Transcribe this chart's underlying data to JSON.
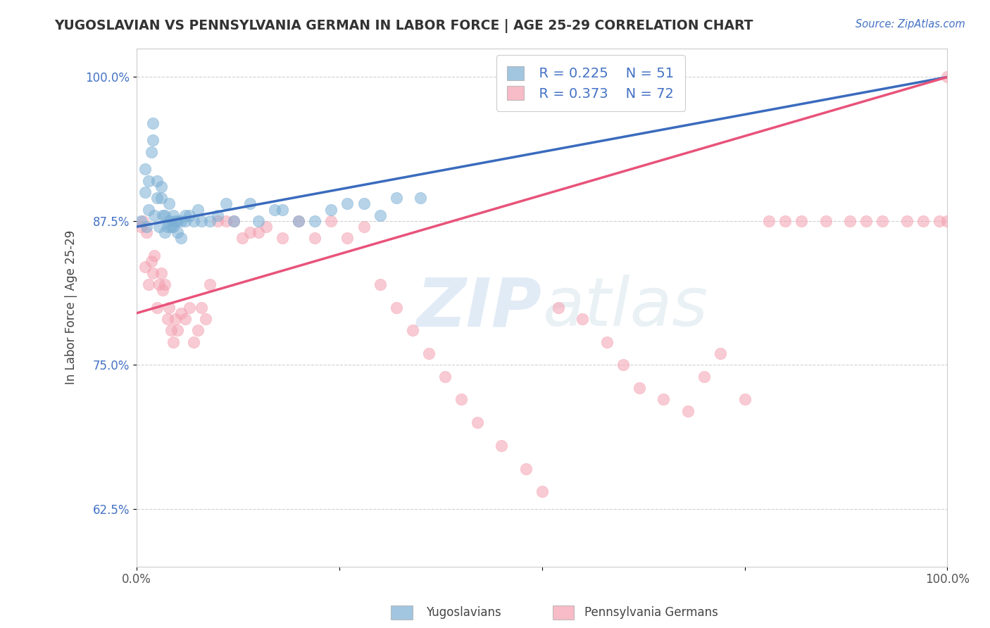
{
  "title": "YUGOSLAVIAN VS PENNSYLVANIA GERMAN IN LABOR FORCE | AGE 25-29 CORRELATION CHART",
  "source_text": "Source: ZipAtlas.com",
  "xlabel": "",
  "ylabel": "In Labor Force | Age 25-29",
  "xlim": [
    0.0,
    1.0
  ],
  "ylim": [
    0.575,
    1.025
  ],
  "xticks": [
    0.0,
    0.25,
    0.5,
    0.75,
    1.0
  ],
  "xticklabels": [
    "0.0%",
    "",
    "",
    "",
    "100.0%"
  ],
  "yticks": [
    0.625,
    0.75,
    0.875,
    1.0
  ],
  "yticklabels": [
    "62.5%",
    "75.0%",
    "87.5%",
    "100.0%"
  ],
  "background_color": "#ffffff",
  "watermark_zip": "ZIP",
  "watermark_atlas": "atlas",
  "legend_r1": "R = 0.225",
  "legend_n1": "N = 51",
  "legend_r2": "R = 0.373",
  "legend_n2": "N = 72",
  "blue_color": "#7bafd4",
  "pink_color": "#f4a0b0",
  "blue_line_color": "#3a6bbd",
  "pink_line_color": "#e8537a",
  "text_color": "#4472c4",
  "grid_color": "#d0d0d0",
  "yugoslav_x": [
    0.005,
    0.01,
    0.01,
    0.012,
    0.015,
    0.015,
    0.018,
    0.02,
    0.02,
    0.022,
    0.025,
    0.025,
    0.028,
    0.03,
    0.03,
    0.032,
    0.035,
    0.035,
    0.038,
    0.04,
    0.04,
    0.042,
    0.045,
    0.045,
    0.048,
    0.05,
    0.05,
    0.055,
    0.055,
    0.06,
    0.06,
    0.065,
    0.07,
    0.075,
    0.08,
    0.09,
    0.1,
    0.11,
    0.12,
    0.14,
    0.15,
    0.17,
    0.18,
    0.2,
    0.22,
    0.24,
    0.26,
    0.28,
    0.3,
    0.32,
    0.35
  ],
  "yugoslav_y": [
    0.875,
    0.92,
    0.9,
    0.87,
    0.885,
    0.91,
    0.935,
    0.945,
    0.96,
    0.88,
    0.895,
    0.91,
    0.87,
    0.895,
    0.905,
    0.88,
    0.865,
    0.88,
    0.87,
    0.875,
    0.89,
    0.87,
    0.87,
    0.88,
    0.875,
    0.875,
    0.865,
    0.875,
    0.86,
    0.875,
    0.88,
    0.88,
    0.875,
    0.885,
    0.875,
    0.875,
    0.88,
    0.89,
    0.875,
    0.89,
    0.875,
    0.885,
    0.885,
    0.875,
    0.875,
    0.885,
    0.89,
    0.89,
    0.88,
    0.895,
    0.895
  ],
  "pagerman_x": [
    0.005,
    0.008,
    0.01,
    0.012,
    0.015,
    0.018,
    0.02,
    0.022,
    0.025,
    0.028,
    0.03,
    0.032,
    0.035,
    0.038,
    0.04,
    0.042,
    0.045,
    0.048,
    0.05,
    0.055,
    0.06,
    0.065,
    0.07,
    0.075,
    0.08,
    0.085,
    0.09,
    0.1,
    0.11,
    0.12,
    0.13,
    0.14,
    0.15,
    0.16,
    0.18,
    0.2,
    0.22,
    0.24,
    0.26,
    0.28,
    0.3,
    0.32,
    0.34,
    0.36,
    0.38,
    0.4,
    0.42,
    0.45,
    0.48,
    0.5,
    0.52,
    0.55,
    0.58,
    0.6,
    0.62,
    0.65,
    0.68,
    0.7,
    0.72,
    0.75,
    0.78,
    0.8,
    0.82,
    0.85,
    0.88,
    0.9,
    0.92,
    0.95,
    0.97,
    0.99,
    1.0,
    1.0
  ],
  "pagerman_y": [
    0.87,
    0.875,
    0.835,
    0.865,
    0.82,
    0.84,
    0.83,
    0.845,
    0.8,
    0.82,
    0.83,
    0.815,
    0.82,
    0.79,
    0.8,
    0.78,
    0.77,
    0.79,
    0.78,
    0.795,
    0.79,
    0.8,
    0.77,
    0.78,
    0.8,
    0.79,
    0.82,
    0.875,
    0.875,
    0.875,
    0.86,
    0.865,
    0.865,
    0.87,
    0.86,
    0.875,
    0.86,
    0.875,
    0.86,
    0.87,
    0.82,
    0.8,
    0.78,
    0.76,
    0.74,
    0.72,
    0.7,
    0.68,
    0.66,
    0.64,
    0.8,
    0.79,
    0.77,
    0.75,
    0.73,
    0.72,
    0.71,
    0.74,
    0.76,
    0.72,
    0.875,
    0.875,
    0.875,
    0.875,
    0.875,
    0.875,
    0.875,
    0.875,
    0.875,
    0.875,
    0.875,
    1.0
  ],
  "blue_line_x": [
    0.0,
    1.0
  ],
  "blue_line_y_start": 0.87,
  "blue_line_y_end": 1.0,
  "pink_line_x": [
    0.0,
    1.0
  ],
  "pink_line_y_start": 0.795,
  "pink_line_y_end": 1.0
}
